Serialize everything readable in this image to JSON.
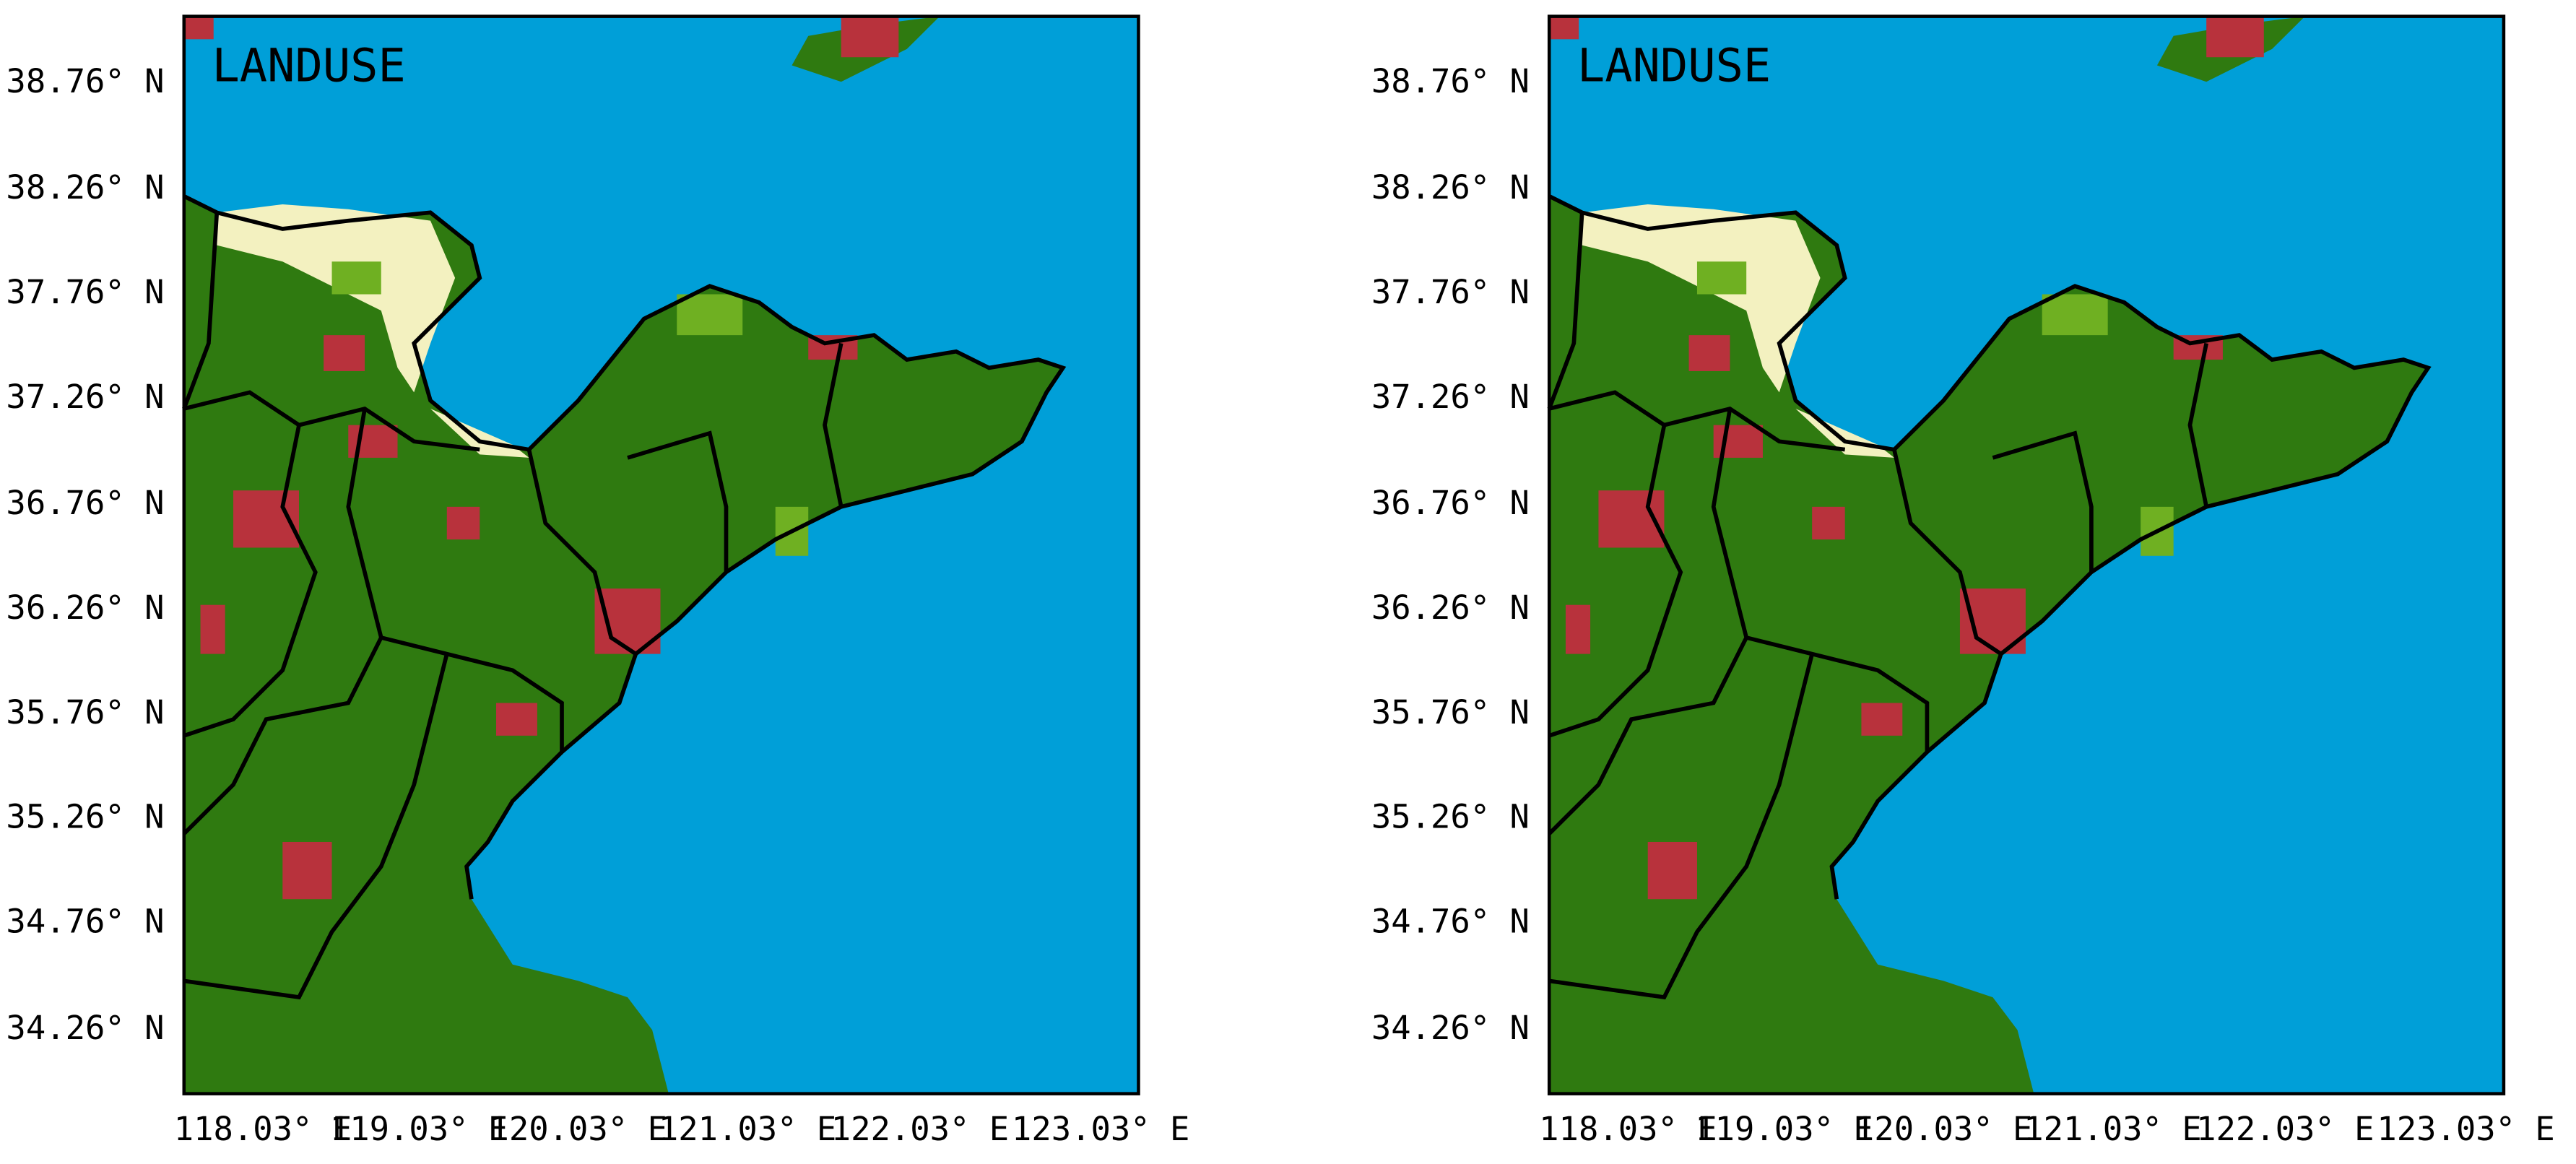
{
  "panels": [
    {
      "title": "LANDUSE",
      "lat_labels": [
        "38.76° N",
        "38.26° N",
        "37.76° N",
        "37.26° N",
        "36.76° N",
        "36.26° N",
        "35.76° N",
        "35.26° N",
        "34.76° N",
        "34.26° N"
      ],
      "lon_labels": [
        "118.03° E",
        "119.03° E",
        "120.03° E",
        "121.03° E",
        "122.03° E",
        "123.03° E"
      ]
    },
    {
      "title": "LANDUSE",
      "lat_labels": [
        "38.76° N",
        "38.26° N",
        "37.76° N",
        "37.26° N",
        "36.76° N",
        "36.26° N",
        "35.76° N",
        "35.26° N",
        "34.76° N",
        "34.26° N"
      ],
      "lon_labels": [
        "118.03° E",
        "119.03° E",
        "120.03° E",
        "121.03° E",
        "122.03° E",
        "123.03° E"
      ]
    }
  ]
}
